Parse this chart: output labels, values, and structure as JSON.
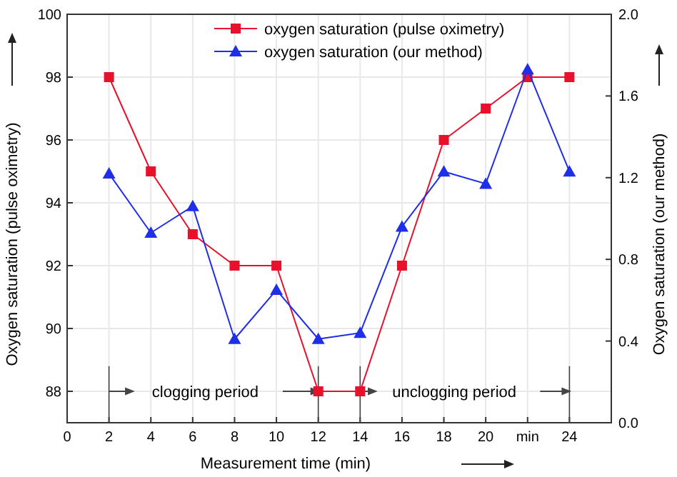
{
  "chart_data": {
    "type": "line",
    "xlabel": "Measurement time (min)",
    "ylabel": "Oxygen saturation (pulse oximetry)",
    "y2label": "Oxygen saturation (our method)",
    "x": [
      2,
      4,
      6,
      8,
      10,
      12,
      14,
      16,
      18,
      20,
      22,
      24
    ],
    "series": [
      {
        "name": "oxygen saturation (pulse oximetry)",
        "color": "#e8102a",
        "marker": "square",
        "values": [
          98,
          95,
          93,
          92,
          92,
          88,
          88,
          92,
          96,
          97,
          98,
          98
        ]
      },
      {
        "name": "oxygen saturation (our method)",
        "color": "#1f2ee8",
        "marker": "triangle",
        "axis": "y2",
        "values": [
          1.22,
          0.93,
          1.06,
          0.41,
          0.65,
          0.41,
          0.44,
          0.96,
          1.23,
          1.17,
          1.73,
          1.23
        ]
      }
    ],
    "xlim": [
      0,
      26
    ],
    "xticks": [
      0,
      2,
      4,
      6,
      8,
      10,
      12,
      14,
      16,
      18,
      20,
      {
        "value": 22,
        "label": "min"
      },
      24
    ],
    "ylim": [
      87,
      100
    ],
    "yticks": [
      88,
      90,
      92,
      94,
      96,
      98,
      100
    ],
    "y2lim": [
      0,
      2
    ],
    "y2ticks": [
      {
        "value": 0,
        "label": "0.0"
      },
      {
        "value": 0.4,
        "label": "0.4"
      },
      {
        "value": 0.8,
        "label": "0.8"
      },
      {
        "value": 1.2,
        "label": "1.2"
      },
      {
        "value": 1.6,
        "label": "1.6"
      },
      {
        "value": 2,
        "label": "2.0"
      }
    ],
    "annotations": [
      "clogging period",
      "unclogging period"
    ],
    "grid": true,
    "legend": "top",
    "line_style": "solid"
  }
}
